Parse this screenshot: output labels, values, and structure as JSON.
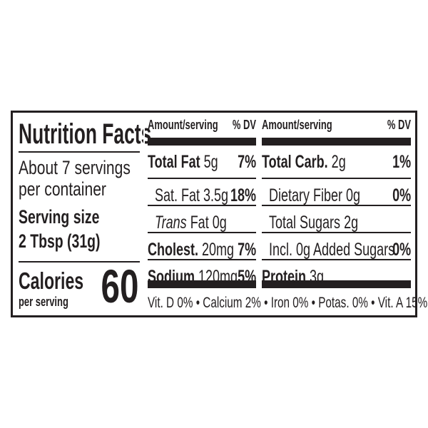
{
  "title": "Nutrition Facts",
  "servings": "About 7 servings",
  "servings2": "per container",
  "serving_size_label": "Serving size",
  "serving_size": "2 Tbsp (31g)",
  "calories_label": "Calories",
  "calories_sub": "per serving",
  "calories": "60",
  "header": {
    "amount": "Amount/serving",
    "dv": "% DV"
  },
  "left_rows": [
    {
      "name": "Total Fat",
      "amount": "5g",
      "dv": "7%"
    },
    {
      "name": "Sat. Fat",
      "amount": "3.5g",
      "dv": "18%"
    },
    {
      "name": "Trans",
      "amount": "Fat 0g",
      "dv": ""
    },
    {
      "name": "Cholest.",
      "amount": "20mg",
      "dv": "7%"
    },
    {
      "name": "Sodium",
      "amount": "120mg",
      "dv": "5%"
    }
  ],
  "right_rows": [
    {
      "name": "Total Carb.",
      "amount": "2g",
      "dv": "1%"
    },
    {
      "name": "Dietary Fiber",
      "amount": "0g",
      "dv": "0%"
    },
    {
      "name": "Total Sugars",
      "amount": "2g",
      "dv": ""
    },
    {
      "name": "Incl. 0g Added Sugars",
      "amount": "",
      "dv": "0%"
    },
    {
      "name": "Protein",
      "amount": "3g",
      "dv": ""
    }
  ],
  "footer": "Vit. D 0% • Calcium 2% • Iron 0% • Potas. 0% • Vit. A 15%"
}
